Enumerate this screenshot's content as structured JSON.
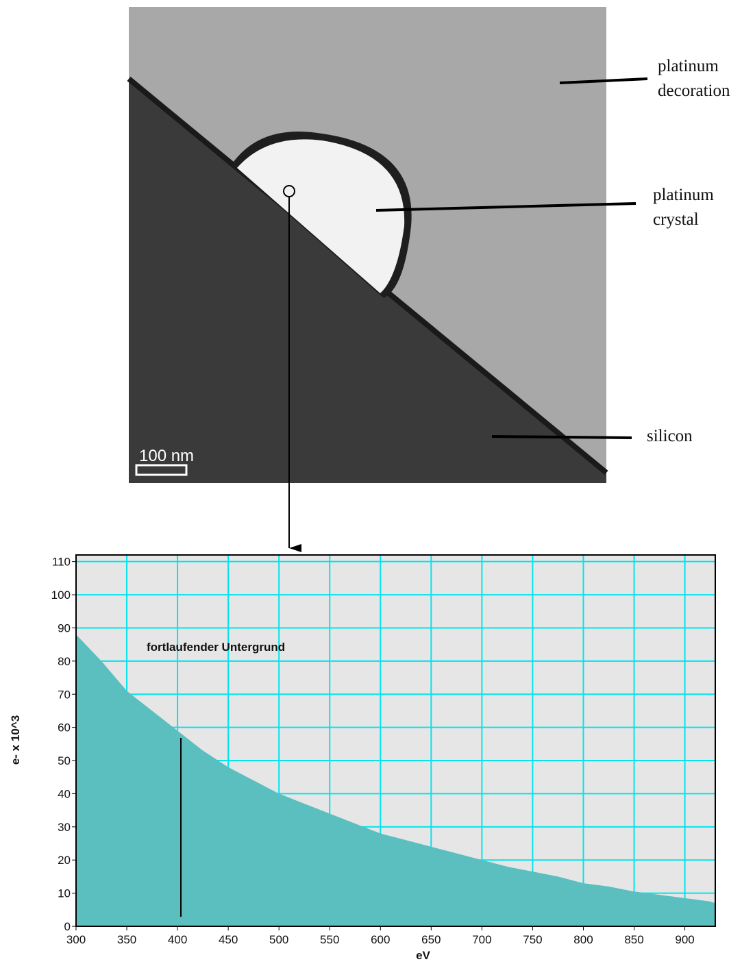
{
  "image": {
    "labels": [
      [
        "platinum",
        "decoration"
      ],
      [
        "platinum",
        "crystal"
      ],
      [
        "silicon"
      ]
    ],
    "scale_bar": "100 nm"
  },
  "chart_data": {
    "type": "area",
    "x_label": "eV",
    "y_label": "e- x 10^3",
    "annotation": "fortlaufender Untergrund",
    "x": [
      300,
      325,
      350,
      375,
      400,
      425,
      450,
      475,
      500,
      525,
      550,
      575,
      600,
      625,
      650,
      675,
      700,
      725,
      750,
      775,
      800,
      825,
      850,
      875,
      900,
      925,
      930
    ],
    "values": [
      88,
      80,
      71,
      65,
      59,
      53,
      48,
      44,
      40,
      37,
      34,
      31,
      28,
      26,
      24,
      22,
      20,
      18,
      16.5,
      15,
      13,
      12,
      10.5,
      9.5,
      8.5,
      7.5,
      7
    ],
    "color": "#5bbfbf",
    "grid": true,
    "grid_color": "#00e5ee",
    "background": "#e6e6e6",
    "xlim": [
      300,
      930
    ],
    "ylim": [
      0,
      112
    ],
    "xticks": [
      300,
      350,
      400,
      450,
      500,
      550,
      600,
      650,
      700,
      750,
      800,
      850,
      900
    ],
    "yticks": [
      0,
      10,
      20,
      30,
      40,
      50,
      60,
      70,
      80,
      90,
      100,
      110
    ]
  }
}
